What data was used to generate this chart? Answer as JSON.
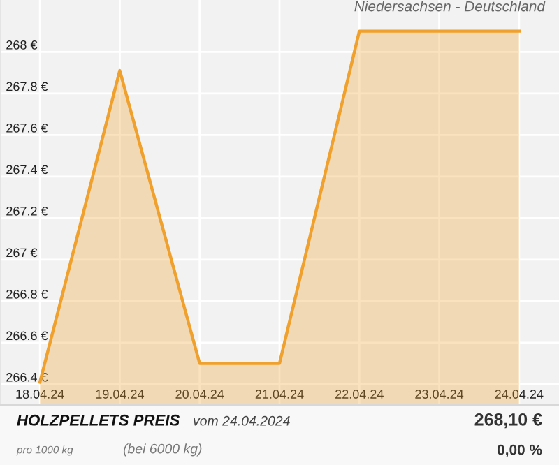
{
  "chart_data": {
    "type": "area",
    "title": "HOLZPELLETS PREIS",
    "subtitle": "Niedersachsen - Deutschland",
    "annotations": [
      "vom 24.04.2024",
      "pro 1000 kg",
      "(bei 6000 kg)",
      "268,10 €",
      "0,00 %"
    ],
    "x": [
      "2024-04-18",
      "2024-04-19",
      "2024-04-20",
      "2024-04-21",
      "2024-04-22",
      "2024-04-23",
      "2024-04-24"
    ],
    "series": [
      {
        "color": "#f0a02c",
        "values": [
          266.41,
          267.91,
          266.5,
          266.5,
          268.1,
          268.1,
          268.1
        ]
      }
    ],
    "xlim": [
      "2024-04-17T12:00",
      "2024-04-24T12:00"
    ],
    "xticks": [
      {
        "value": "2024-04-18",
        "label": "18.04.24"
      },
      {
        "value": "2024-04-19",
        "label": "19.04.24"
      },
      {
        "value": "2024-04-20",
        "label": "20.04.24"
      },
      {
        "value": "2024-04-21",
        "label": "21.04.24"
      },
      {
        "value": "2024-04-22",
        "label": "22.04.24"
      },
      {
        "value": "2024-04-23",
        "label": "23.04.24"
      },
      {
        "value": "2024-04-24",
        "label": "24.04.24"
      }
    ],
    "ylim": [
      266.3,
      268.25
    ],
    "yticks": [
      {
        "value": 266.4,
        "label": "266.4 €"
      },
      {
        "value": 266.6,
        "label": "266.6 €"
      },
      {
        "value": 266.8,
        "label": "266.8 €"
      },
      {
        "value": 267,
        "label": "267 €"
      },
      {
        "value": 267.2,
        "label": "267.2 €"
      },
      {
        "value": 267.4,
        "label": "267.4 €"
      },
      {
        "value": 267.6,
        "label": "267.6 €"
      },
      {
        "value": 267.8,
        "label": "267.8 €"
      },
      {
        "value": 268,
        "label": "268 €"
      }
    ],
    "grid": true,
    "legend": false
  }
}
